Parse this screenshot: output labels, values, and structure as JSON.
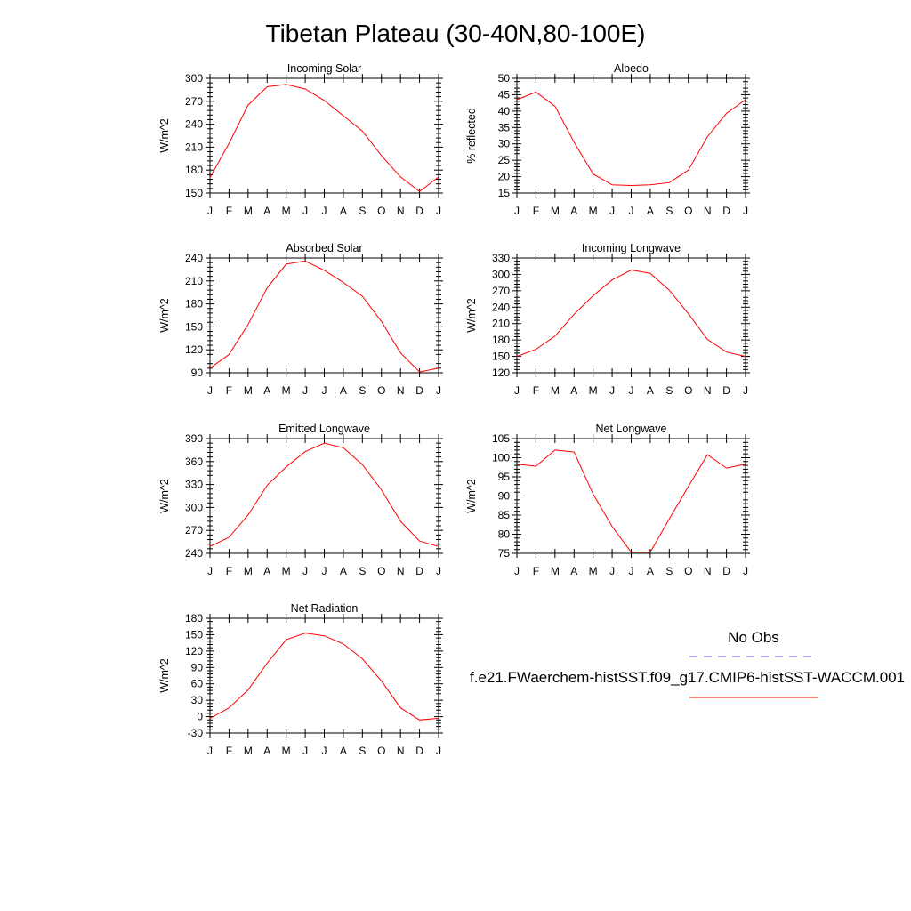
{
  "figure": {
    "title": "Tibetan Plateau (30-40N,80-100E)"
  },
  "legend": {
    "obs_label": "No Obs",
    "obs_color": "#5a5aff",
    "model_label": "f.e21.FWaerchem-histSST.f09_g17.CMIP6-histSST-WACCM.001",
    "model_color": "#ff0000"
  },
  "chart_data": [
    {
      "type": "line",
      "title": "Incoming Solar",
      "ylabel": "W/m^2",
      "x": [
        "J",
        "F",
        "M",
        "A",
        "M",
        "J",
        "J",
        "A",
        "S",
        "O",
        "N",
        "D",
        "J"
      ],
      "ylim": [
        150,
        300
      ],
      "yticks": [
        150,
        180,
        210,
        240,
        270,
        300
      ],
      "values": [
        170,
        215,
        265,
        289,
        292,
        286,
        271,
        251,
        231,
        199,
        171,
        152,
        171
      ]
    },
    {
      "type": "line",
      "title": "Albedo",
      "ylabel": "% reflected",
      "x": [
        "J",
        "F",
        "M",
        "A",
        "M",
        "J",
        "J",
        "A",
        "S",
        "O",
        "N",
        "D",
        "J"
      ],
      "ylim": [
        15,
        50
      ],
      "yticks": [
        15,
        20,
        25,
        30,
        35,
        40,
        45,
        50
      ],
      "values": [
        43.5,
        45.8,
        41.5,
        30.5,
        20.8,
        17.5,
        17.3,
        17.5,
        18.2,
        22.0,
        32.2,
        39.3,
        43.5
      ]
    },
    {
      "type": "line",
      "title": "Absorbed Solar",
      "ylabel": "W/m^2",
      "x": [
        "J",
        "F",
        "M",
        "A",
        "M",
        "J",
        "J",
        "A",
        "S",
        "O",
        "N",
        "D",
        "J"
      ],
      "ylim": [
        90,
        240
      ],
      "yticks": [
        90,
        120,
        150,
        180,
        210,
        240
      ],
      "values": [
        96,
        114,
        153,
        201,
        232,
        236,
        224,
        208,
        190,
        157,
        116,
        91,
        96
      ]
    },
    {
      "type": "line",
      "title": "Incoming Longwave",
      "ylabel": "W/m^2",
      "x": [
        "J",
        "F",
        "M",
        "A",
        "M",
        "J",
        "J",
        "A",
        "S",
        "O",
        "N",
        "D",
        "J"
      ],
      "ylim": [
        120,
        330
      ],
      "yticks": [
        120,
        150,
        180,
        210,
        240,
        270,
        300,
        330
      ],
      "values": [
        150,
        163,
        187,
        227,
        261,
        290,
        308,
        302,
        271,
        228,
        181,
        158,
        150
      ]
    },
    {
      "type": "line",
      "title": "Emitted Longwave",
      "ylabel": "W/m^2",
      "x": [
        "J",
        "F",
        "M",
        "A",
        "M",
        "J",
        "J",
        "A",
        "S",
        "O",
        "N",
        "D",
        "J"
      ],
      "ylim": [
        240,
        390
      ],
      "yticks": [
        240,
        270,
        300,
        330,
        360,
        390
      ],
      "values": [
        249,
        261,
        290,
        329,
        353,
        373,
        384,
        378,
        356,
        323,
        282,
        256,
        249
      ]
    },
    {
      "type": "line",
      "title": "Net Longwave",
      "ylabel": "W/m^2",
      "x": [
        "J",
        "F",
        "M",
        "A",
        "M",
        "J",
        "J",
        "A",
        "S",
        "O",
        "N",
        "D",
        "J"
      ],
      "ylim": [
        75,
        105
      ],
      "yticks": [
        75,
        80,
        85,
        90,
        95,
        100,
        105
      ],
      "values": [
        98.3,
        97.8,
        102.0,
        101.5,
        90.5,
        82.0,
        75.3,
        75.3,
        84.0,
        92.5,
        100.8,
        97.3,
        98.3
      ]
    },
    {
      "type": "line",
      "title": "Net Radiation",
      "ylabel": "W/m^2",
      "x": [
        "J",
        "F",
        "M",
        "A",
        "M",
        "J",
        "J",
        "A",
        "S",
        "O",
        "N",
        "D",
        "J"
      ],
      "ylim": [
        -30,
        180
      ],
      "yticks": [
        -30,
        0,
        30,
        60,
        90,
        120,
        150,
        180
      ],
      "values": [
        -3,
        16,
        49,
        98,
        141,
        153,
        148,
        133,
        106,
        65,
        16,
        -6,
        -3
      ]
    }
  ]
}
